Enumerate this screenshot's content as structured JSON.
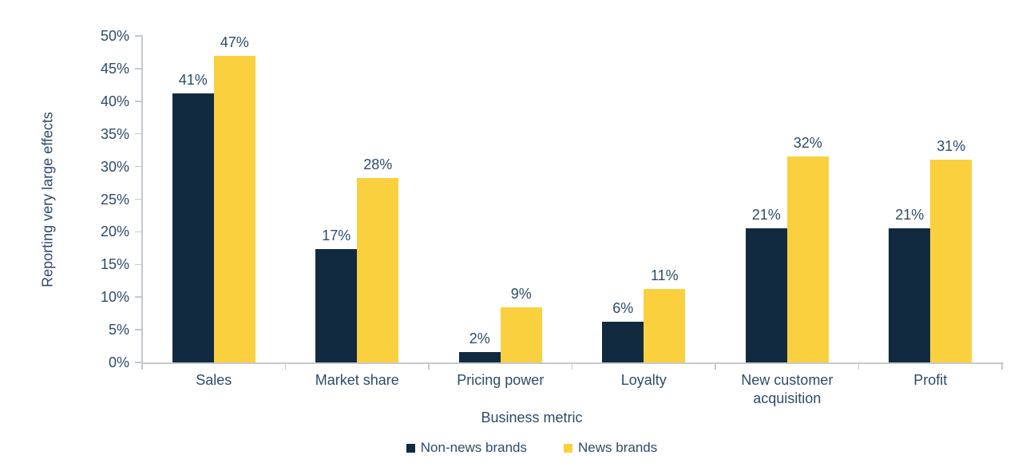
{
  "chart_data": {
    "type": "bar",
    "title": "",
    "categories": [
      "Sales",
      "Market share",
      "Pricing power",
      "Loyalty",
      "New customer acquisition",
      "Profit"
    ],
    "series": [
      {
        "name": "Non-news brands",
        "color": "#112A40",
        "values": [
          41.2,
          17.4,
          1.6,
          6.3,
          20.6,
          20.6
        ],
        "data_labels": [
          "41%",
          "17%",
          "2%",
          "6%",
          "21%",
          "21%"
        ]
      },
      {
        "name": "News brands",
        "color": "#FAD03E",
        "values": [
          47,
          28.3,
          8.5,
          11.2,
          31.5,
          31
        ],
        "data_labels": [
          "47%",
          "28%",
          "9%",
          "11%",
          "32%",
          "31%"
        ]
      }
    ],
    "xlabel": "Business metric",
    "ylabel": "Reporting very large effects",
    "ylim": [
      0,
      50
    ],
    "ytick_step": 5,
    "ytick_labels": [
      "0%",
      "5%",
      "10%",
      "15%",
      "20%",
      "25%",
      "30%",
      "35%",
      "40%",
      "45%",
      "50%"
    ],
    "grid": false,
    "legend_position": "bottom-center"
  },
  "styles": {
    "background": "#FFFFFF",
    "text_color": "#2E4B69",
    "axis_color": "#C4C9CD"
  }
}
